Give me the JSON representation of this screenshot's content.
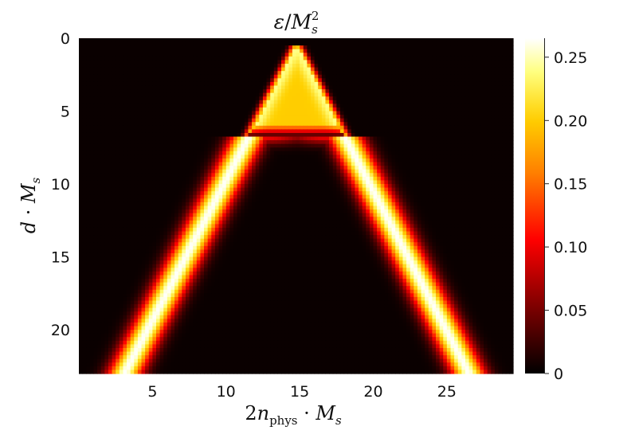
{
  "chart_data": {
    "type": "heatmap",
    "title": "ε/M_s^2",
    "title_parts": {
      "num": "ε",
      "slash": "/",
      "base": "M",
      "sub": "s",
      "sup": "2"
    },
    "xlabel": "2n_phys · M_s",
    "xlabel_parts": {
      "coef": "2",
      "var": "n",
      "sub": "phys",
      "dot": " · ",
      "base": "M",
      "sub2": "s"
    },
    "ylabel": "d · M_s",
    "ylabel_parts": {
      "var": "d",
      "dot": " · ",
      "base": "M",
      "sub": "s"
    },
    "colormap": "hot",
    "colormap_colors": [
      "#000000",
      "#8b0000",
      "#ff0000",
      "#ff8000",
      "#ffd000",
      "#ffff80",
      "#ffffff"
    ],
    "xlim": [
      0,
      29.5
    ],
    "ylim": [
      0,
      23
    ],
    "y_inverted": true,
    "x_ticks": [
      5,
      10,
      15,
      20,
      25
    ],
    "x_tick_labels": [
      "5",
      "10",
      "15",
      "20",
      "25"
    ],
    "y_ticks": [
      0,
      5,
      10,
      15,
      20
    ],
    "y_tick_labels": [
      "0",
      "5",
      "10",
      "15",
      "20"
    ],
    "colorbar": {
      "range": [
        0,
        0.265
      ],
      "ticks": [
        0,
        0.05,
        0.1,
        0.15,
        0.2,
        0.25
      ],
      "tick_labels": [
        "0",
        "0.05",
        "0.10",
        "0.15",
        "0.20",
        "0.25"
      ]
    },
    "field": {
      "description_of_shape": "inverted-V light-cone",
      "apex_x": 14.8,
      "apex_y": 0.5,
      "cone_slope_dx_per_dy": 0.52,
      "core_end_y": 6.5,
      "core_value": 0.2,
      "core_rim_value": 0.24,
      "arm_peak_value": 0.26,
      "arm_width": 0.8,
      "arm_offset_dx": 0.6,
      "base_value": 0.004
    }
  }
}
